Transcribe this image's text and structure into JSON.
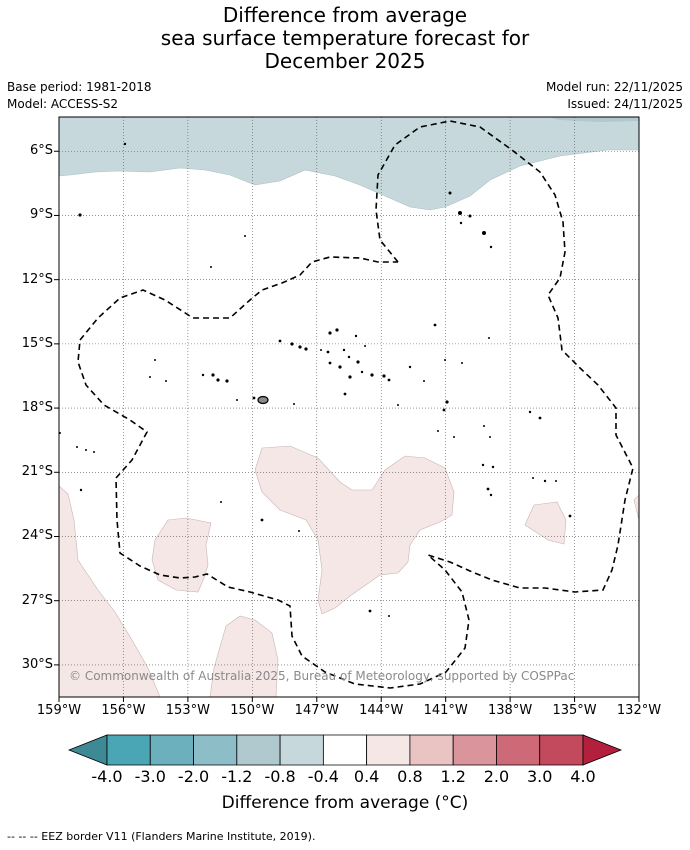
{
  "title_lines": [
    "Difference from average",
    "sea surface temperature forecast for",
    "December 2025"
  ],
  "meta": {
    "base_period": "Base period: 1981-2018",
    "model": "Model: ACCESS-S2",
    "model_run": "Model run: 22/11/2025",
    "issued": "Issued: 24/11/2025"
  },
  "map": {
    "lat_labels": [
      "6°S",
      "9°S",
      "12°S",
      "15°S",
      "18°S",
      "21°S",
      "24°S",
      "27°S",
      "30°S"
    ],
    "lon_labels": [
      "159°W",
      "156°W",
      "153°W",
      "150°W",
      "147°W",
      "144°W",
      "141°W",
      "138°W",
      "135°W",
      "132°W"
    ],
    "lon_range": [
      -159,
      -132
    ],
    "lat_range": [
      -4.4,
      -31.5
    ],
    "copyright": "© Commonwealth of Australia 2025, Bureau of Meteorology, supported by COSPPac"
  },
  "colorbar": {
    "title": "Difference from average (°C)",
    "tick_labels": [
      "-4.0",
      "-3.0",
      "-2.0",
      "-1.2",
      "-0.8",
      "-0.4",
      "0.4",
      "0.8",
      "1.2",
      "2.0",
      "3.0",
      "4.0"
    ],
    "colors": [
      "#3d8a94",
      "#4aa5b4",
      "#6cb0be",
      "#8dbdc7",
      "#afc9cf",
      "#c6d8dc",
      "#ffffff",
      "#f4e7e6",
      "#e9c4c3",
      "#d9959b",
      "#ce6a77",
      "#c24a5c",
      "#b3203e"
    ]
  },
  "footnote": "-- -- -- EEZ border V11 (Flanders Marine Institute, 2019)."
}
